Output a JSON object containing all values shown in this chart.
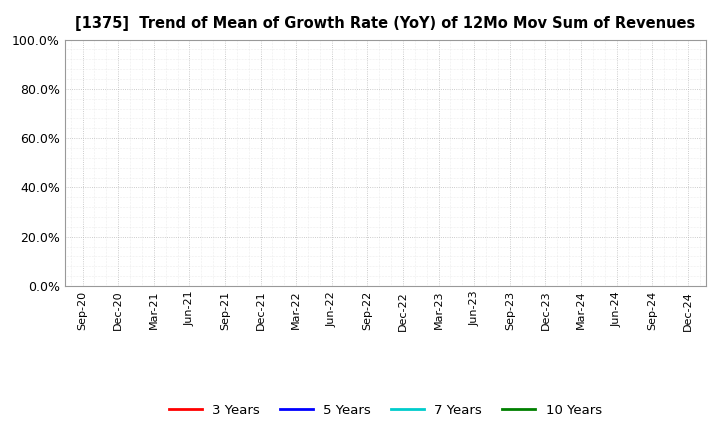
{
  "title": "[1375]  Trend of Mean of Growth Rate (YoY) of 12Mo Mov Sum of Revenues",
  "title_fontsize": 10.5,
  "ylim": [
    0.0,
    1.0
  ],
  "yticks": [
    0.0,
    0.2,
    0.4,
    0.6,
    0.8,
    1.0
  ],
  "ytick_labels": [
    "0.0%",
    "20.0%",
    "40.0%",
    "60.0%",
    "80.0%",
    "100.0%"
  ],
  "xtick_labels": [
    "Sep-20",
    "Dec-20",
    "Mar-21",
    "Jun-21",
    "Sep-21",
    "Dec-21",
    "Mar-22",
    "Jun-22",
    "Sep-22",
    "Dec-22",
    "Mar-23",
    "Jun-23",
    "Sep-23",
    "Dec-23",
    "Mar-24",
    "Jun-24",
    "Sep-24",
    "Dec-24"
  ],
  "legend_entries": [
    "3 Years",
    "5 Years",
    "7 Years",
    "10 Years"
  ],
  "legend_colors": [
    "#ff0000",
    "#0000ff",
    "#00cccc",
    "#008000"
  ],
  "background_color": "#ffffff",
  "plot_bg_color": "#ffffff",
  "grid_color": "#bbbbbb",
  "minor_grid_color": "#dddddd"
}
